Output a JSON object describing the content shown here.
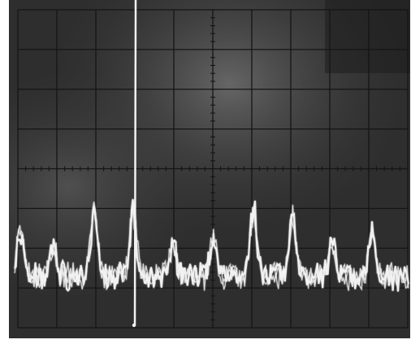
{
  "screen": {
    "background_dark": "#2e2e2e",
    "background_mid": "#4a4a4a",
    "graticule_color": "#151515",
    "trace_color": "#f2f2f2",
    "glare_color": "#6a6a6a"
  },
  "graticule": {
    "divisions_x": 10,
    "divisions_y": 8,
    "minor_ticks_per_division": 5
  },
  "trace": {
    "description_icon": "oscilloscope-trace",
    "peak_count": 9,
    "marker_line": "vertical-bright-line"
  }
}
